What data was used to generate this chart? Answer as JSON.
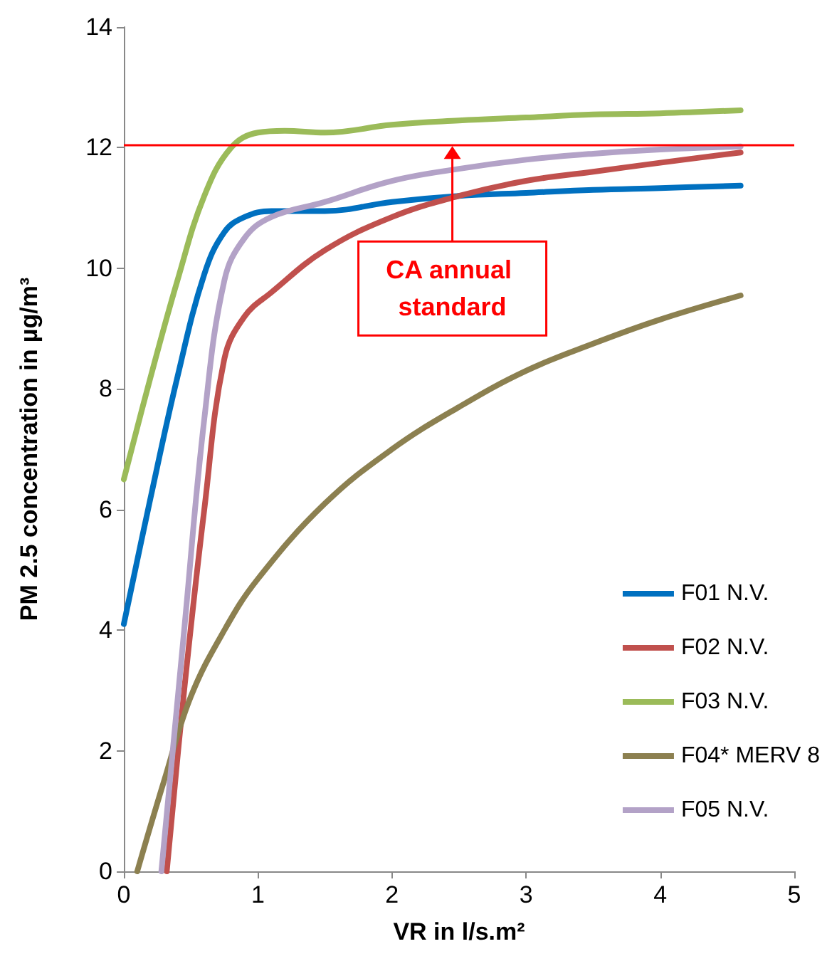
{
  "chart_data": {
    "type": "line",
    "xlabel": "VR in l/s.m²",
    "ylabel": "PM 2.5 concentration in µg/m³",
    "xlim": [
      0,
      5
    ],
    "xticks": [
      0,
      1,
      2,
      3,
      4,
      5
    ],
    "ylim": [
      0,
      14
    ],
    "yticks": [
      0,
      2,
      4,
      6,
      8,
      10,
      12,
      14
    ],
    "grid": false,
    "legend": "bottom right",
    "marker": "none",
    "series": [
      {
        "name": "F01 N.V.",
        "color": "#0070c0",
        "x": [
          0,
          0.2,
          0.4,
          0.6,
          0.75,
          0.9,
          1.1,
          1.5,
          2,
          2.5,
          3,
          3.5,
          4,
          4.6
        ],
        "values": [
          4.1,
          6.2,
          8.2,
          9.9,
          10.6,
          10.85,
          10.95,
          10.95,
          11.1,
          11.2,
          11.25,
          11.3,
          11.33,
          11.37
        ]
      },
      {
        "name": "F02 N.V.",
        "color": "#c0504d",
        "x": [
          0.32,
          0.45,
          0.6,
          0.75,
          0.9,
          1.1,
          1.5,
          2,
          2.5,
          3,
          3.5,
          4,
          4.6
        ],
        "values": [
          0,
          3,
          6,
          8.5,
          9.2,
          9.6,
          10.3,
          10.85,
          11.2,
          11.45,
          11.6,
          11.75,
          11.92
        ]
      },
      {
        "name": "F03 N.V.",
        "color": "#9bbb59",
        "x": [
          0,
          0.2,
          0.4,
          0.6,
          0.8,
          1,
          1.2,
          1.5,
          2,
          2.5,
          3,
          3.5,
          4,
          4.6
        ],
        "values": [
          6.5,
          8.2,
          9.8,
          11.2,
          12.0,
          12.25,
          12.28,
          12.25,
          12.38,
          12.45,
          12.5,
          12.55,
          12.57,
          12.62
        ]
      },
      {
        "name": "F04* MERV 8",
        "color": "#8c8050",
        "x": [
          0.1,
          0.3,
          0.5,
          0.75,
          1,
          1.5,
          2,
          2.5,
          3,
          3.5,
          4,
          4.6
        ],
        "values": [
          0,
          1.5,
          2.9,
          4,
          4.85,
          6.1,
          7.0,
          7.7,
          8.3,
          8.75,
          9.15,
          9.55
        ]
      },
      {
        "name": "F05 N.V.",
        "color": "#b3a2c7",
        "x": [
          0.28,
          0.45,
          0.6,
          0.75,
          0.9,
          1.1,
          1.5,
          2,
          2.5,
          3,
          3.5,
          4,
          4.6
        ],
        "values": [
          0,
          4,
          7.5,
          9.8,
          10.5,
          10.85,
          11.1,
          11.45,
          11.65,
          11.8,
          11.9,
          11.97,
          12.02
        ]
      }
    ],
    "ref_lines": [
      {
        "axis": "y",
        "value": 12.05,
        "color": "#ff0000"
      }
    ],
    "annotations": [
      {
        "text": "CA annual standard",
        "x": 2.45,
        "y": 12.05
      }
    ]
  }
}
